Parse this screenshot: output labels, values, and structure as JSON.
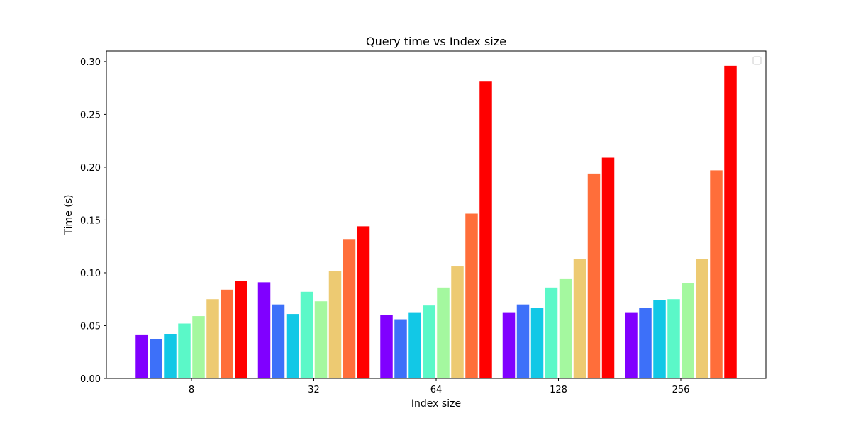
{
  "chart_data": {
    "type": "bar",
    "title": "Query time vs Index size",
    "xlabel": "Index size",
    "ylabel": "Time (s)",
    "categories": [
      "8",
      "32",
      "64",
      "128",
      "256"
    ],
    "ylim": [
      0,
      0.31
    ],
    "yticks": [
      "0.00",
      "0.05",
      "0.10",
      "0.15",
      "0.20",
      "0.25",
      "0.30"
    ],
    "grid": false,
    "legend": {
      "placement": "top-right",
      "entries": []
    },
    "series_colors": [
      "#8000ff",
      "#3d70f9",
      "#12c8e6",
      "#5bf8c8",
      "#a4f89f",
      "#edca72",
      "#ff6e3a",
      "#ff0000"
    ],
    "series": [
      {
        "values": [
          0.041,
          0.091,
          0.06,
          0.062,
          0.062
        ]
      },
      {
        "values": [
          0.037,
          0.07,
          0.056,
          0.07,
          0.067
        ]
      },
      {
        "values": [
          0.042,
          0.061,
          0.062,
          0.067,
          0.074
        ]
      },
      {
        "values": [
          0.052,
          0.082,
          0.069,
          0.086,
          0.075
        ]
      },
      {
        "values": [
          0.059,
          0.073,
          0.086,
          0.094,
          0.09
        ]
      },
      {
        "values": [
          0.075,
          0.102,
          0.106,
          0.113,
          0.113
        ]
      },
      {
        "values": [
          0.084,
          0.132,
          0.156,
          0.194,
          0.197
        ]
      },
      {
        "values": [
          0.092,
          0.144,
          0.281,
          0.209,
          0.296
        ]
      }
    ]
  }
}
